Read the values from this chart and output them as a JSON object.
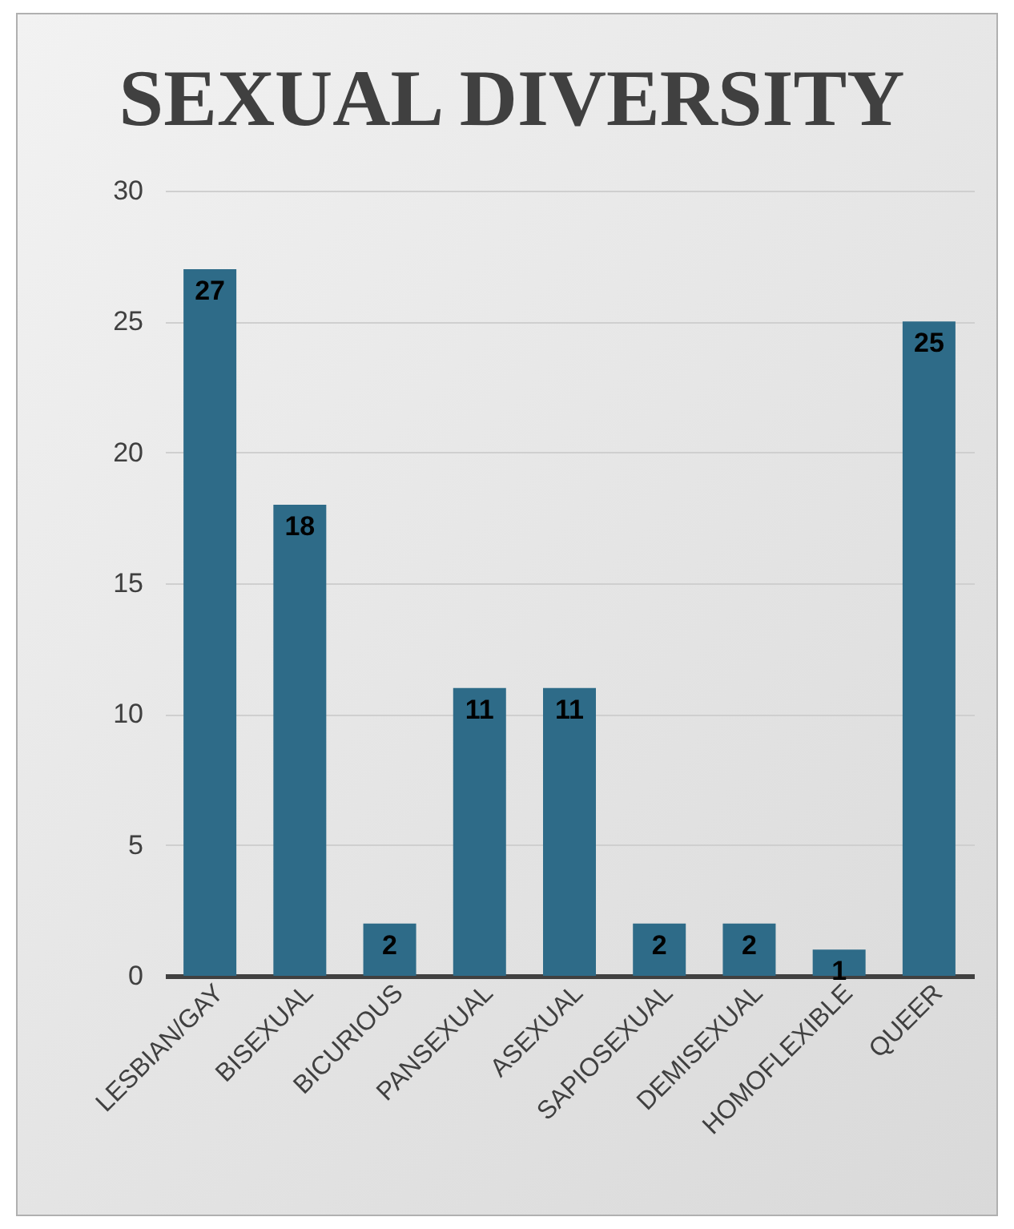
{
  "chart_data": {
    "type": "bar",
    "title": "SEXUAL DIVERSITY",
    "categories": [
      "LESBIAN/GAY",
      "BISEXUAL",
      "BICURIOUS",
      "PANSEXUAL",
      "ASEXUAL",
      "SAPIOSEXUAL",
      "DEMISEXUAL",
      "HOMOFLEXIBLE",
      "QUEER"
    ],
    "values": [
      27,
      18,
      2,
      11,
      11,
      2,
      2,
      1,
      25
    ],
    "color": "#2e6b88",
    "ylim": [
      0,
      30
    ],
    "yticks": [
      0,
      5,
      10,
      15,
      20,
      25,
      30
    ],
    "grid": "y",
    "data_labels": true
  }
}
